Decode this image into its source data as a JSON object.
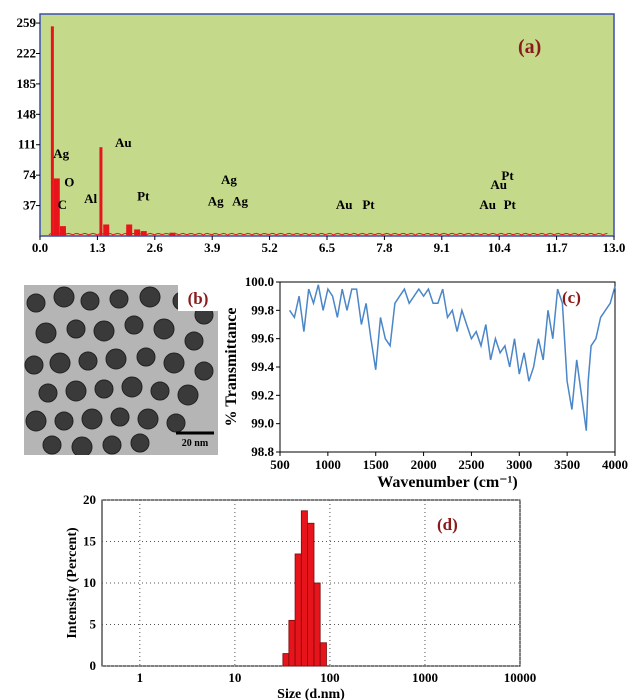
{
  "chart_data": [
    {
      "panel": "a",
      "type": "bar",
      "label": "(a)",
      "background_color": "#c4d98a",
      "bar_color": "#e8141c",
      "xlim": [
        0,
        13
      ],
      "ylim": [
        0,
        270
      ],
      "x_ticks": [
        "0.0",
        "1.3",
        "2.6",
        "3.9",
        "5.2",
        "6.5",
        "7.8",
        "9.1",
        "10.4",
        "11.7",
        "13.0"
      ],
      "y_ticks": [
        "37",
        "74",
        "111",
        "148",
        "185",
        "222",
        "259"
      ],
      "x": [
        0.28,
        0.38,
        0.52,
        1.38,
        1.5,
        2.02,
        2.2,
        2.35,
        3.0
      ],
      "values": [
        255,
        70,
        12,
        108,
        14,
        14,
        8,
        6,
        4
      ],
      "annotations": [
        {
          "text": "Ag",
          "x": 0.3,
          "y": 95
        },
        {
          "text": "C",
          "x": 0.4,
          "y": 33
        },
        {
          "text": "O",
          "x": 0.55,
          "y": 60
        },
        {
          "text": "Al",
          "x": 1.0,
          "y": 40
        },
        {
          "text": "Au",
          "x": 1.7,
          "y": 108
        },
        {
          "text": "Pt",
          "x": 2.2,
          "y": 43
        },
        {
          "text": "Ag",
          "x": 3.8,
          "y": 37
        },
        {
          "text": "Ag",
          "x": 4.35,
          "y": 37
        },
        {
          "text": "Ag",
          "x": 4.1,
          "y": 63
        },
        {
          "text": "Au",
          "x": 6.7,
          "y": 33
        },
        {
          "text": "Pt",
          "x": 7.3,
          "y": 33
        },
        {
          "text": "Au",
          "x": 9.95,
          "y": 33
        },
        {
          "text": "Au",
          "x": 10.2,
          "y": 57
        },
        {
          "text": "Pt",
          "x": 10.45,
          "y": 68
        },
        {
          "text": "Pt",
          "x": 10.5,
          "y": 33
        }
      ]
    },
    {
      "panel": "c",
      "type": "line",
      "label": "(c)",
      "line_color": "#4a86c8",
      "xlabel": "Wavenumber (cm⁻¹)",
      "ylabel": "% Transmittance",
      "xlim": [
        500,
        4000
      ],
      "ylim": [
        98.8,
        100.0
      ],
      "x_ticks": [
        "500",
        "1000",
        "1500",
        "2000",
        "2500",
        "3000",
        "3500",
        "4000"
      ],
      "y_ticks": [
        "98.8",
        "99.0",
        "99.2",
        "99.4",
        "99.6",
        "99.8",
        "100.0"
      ],
      "x": [
        600,
        650,
        700,
        750,
        800,
        850,
        900,
        950,
        1000,
        1050,
        1100,
        1150,
        1200,
        1250,
        1300,
        1350,
        1400,
        1450,
        1500,
        1550,
        1600,
        1650,
        1700,
        1750,
        1800,
        1850,
        1900,
        1950,
        2000,
        2050,
        2100,
        2150,
        2200,
        2250,
        2300,
        2350,
        2400,
        2450,
        2500,
        2550,
        2600,
        2650,
        2700,
        2750,
        2800,
        2850,
        2900,
        2950,
        3000,
        3050,
        3100,
        3150,
        3200,
        3250,
        3300,
        3350,
        3400,
        3450,
        3500,
        3550,
        3600,
        3650,
        3700,
        3720,
        3750,
        3800,
        3850,
        3900,
        3950,
        4000
      ],
      "y": [
        99.8,
        99.75,
        99.9,
        99.65,
        99.95,
        99.85,
        99.98,
        99.8,
        99.95,
        99.9,
        99.75,
        99.95,
        99.8,
        99.95,
        99.95,
        99.7,
        99.85,
        99.6,
        99.38,
        99.75,
        99.6,
        99.55,
        99.85,
        99.9,
        99.95,
        99.85,
        99.9,
        99.95,
        99.9,
        99.95,
        99.85,
        99.85,
        99.95,
        99.75,
        99.8,
        99.65,
        99.8,
        99.7,
        99.6,
        99.65,
        99.55,
        99.7,
        99.45,
        99.6,
        99.5,
        99.55,
        99.4,
        99.6,
        99.35,
        99.5,
        99.3,
        99.4,
        99.6,
        99.45,
        99.8,
        99.6,
        99.95,
        99.85,
        99.3,
        99.1,
        99.45,
        99.2,
        98.95,
        99.3,
        99.55,
        99.6,
        99.75,
        99.8,
        99.85,
        99.97
      ]
    },
    {
      "panel": "d",
      "type": "bar",
      "label": "(d)",
      "bar_color": "#e8141c",
      "xlabel": "Size (d.nm)",
      "ylabel": "Intensity (Percent)",
      "xscale": "log",
      "xlim": [
        0.4,
        10000
      ],
      "ylim": [
        0,
        20
      ],
      "x_ticks": [
        "1",
        "10",
        "100",
        "1000",
        "10000"
      ],
      "y_ticks": [
        "0",
        "5",
        "10",
        "15",
        "20"
      ],
      "grid": true,
      "bins": [
        [
          32,
          37
        ],
        [
          37,
          43
        ],
        [
          43,
          50
        ],
        [
          50,
          58
        ],
        [
          58,
          68
        ],
        [
          68,
          79
        ],
        [
          79,
          92
        ]
      ],
      "values": [
        1.5,
        5.5,
        13.5,
        18.7,
        17.2,
        10.0,
        2.8
      ]
    }
  ],
  "image_b": {
    "label": "(b)",
    "scale_bar": "20 nm"
  }
}
